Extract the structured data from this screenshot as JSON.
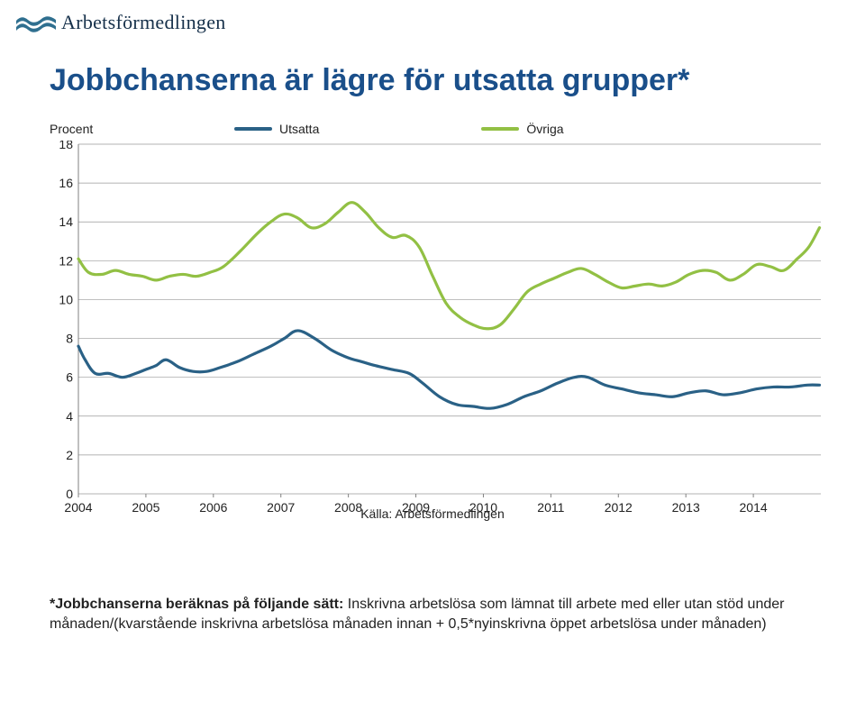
{
  "logo_text": "Arbetsförmedlingen",
  "logo_color": "#2f6f8f",
  "title": "Jobbchanserna är lägre för utsatta grupper*",
  "title_color": "#1a4f8a",
  "y_axis_label": "Procent",
  "legend": {
    "series1": {
      "label": "Utsatta",
      "color": "#2a6186"
    },
    "series2": {
      "label": "Övriga",
      "color": "#92c044"
    }
  },
  "chart": {
    "type": "line",
    "background_color": "#ffffff",
    "grid_color": "#9a9a9a",
    "axis_color": "#808080",
    "tick_font_size": 14,
    "line_width": 3.2,
    "ylim": [
      0,
      18
    ],
    "ytick_step": 2,
    "y_ticks": [
      0,
      2,
      4,
      6,
      8,
      10,
      12,
      14,
      16,
      18
    ],
    "x_min": 2004,
    "x_max": 2015,
    "x_tick_labels": [
      "2004",
      "2005",
      "2006",
      "2007",
      "2008",
      "2009",
      "2010",
      "2011",
      "2012",
      "2013",
      "2014"
    ],
    "source_label": "Källa: Arbetsförmedlingen",
    "series": {
      "utsatta": {
        "color": "#2a6186",
        "points": [
          [
            2004.0,
            7.6
          ],
          [
            2004.1,
            6.9
          ],
          [
            2004.25,
            6.2
          ],
          [
            2004.45,
            6.2
          ],
          [
            2004.65,
            6.0
          ],
          [
            2004.85,
            6.2
          ],
          [
            2005.0,
            6.4
          ],
          [
            2005.15,
            6.6
          ],
          [
            2005.3,
            6.9
          ],
          [
            2005.5,
            6.5
          ],
          [
            2005.7,
            6.3
          ],
          [
            2005.9,
            6.3
          ],
          [
            2006.1,
            6.5
          ],
          [
            2006.35,
            6.8
          ],
          [
            2006.6,
            7.2
          ],
          [
            2006.85,
            7.6
          ],
          [
            2007.05,
            8.0
          ],
          [
            2007.25,
            8.4
          ],
          [
            2007.5,
            8.0
          ],
          [
            2007.75,
            7.4
          ],
          [
            2008.0,
            7.0
          ],
          [
            2008.2,
            6.8
          ],
          [
            2008.4,
            6.6
          ],
          [
            2008.65,
            6.4
          ],
          [
            2008.9,
            6.2
          ],
          [
            2009.1,
            5.7
          ],
          [
            2009.35,
            5.0
          ],
          [
            2009.6,
            4.6
          ],
          [
            2009.85,
            4.5
          ],
          [
            2010.1,
            4.4
          ],
          [
            2010.35,
            4.6
          ],
          [
            2010.6,
            5.0
          ],
          [
            2010.85,
            5.3
          ],
          [
            2011.1,
            5.7
          ],
          [
            2011.35,
            6.0
          ],
          [
            2011.55,
            6.0
          ],
          [
            2011.8,
            5.6
          ],
          [
            2012.05,
            5.4
          ],
          [
            2012.3,
            5.2
          ],
          [
            2012.55,
            5.1
          ],
          [
            2012.8,
            5.0
          ],
          [
            2013.05,
            5.2
          ],
          [
            2013.3,
            5.3
          ],
          [
            2013.55,
            5.1
          ],
          [
            2013.8,
            5.2
          ],
          [
            2014.05,
            5.4
          ],
          [
            2014.3,
            5.5
          ],
          [
            2014.55,
            5.5
          ],
          [
            2014.8,
            5.6
          ],
          [
            2014.98,
            5.6
          ]
        ]
      },
      "ovriga": {
        "color": "#92c044",
        "points": [
          [
            2004.0,
            12.1
          ],
          [
            2004.15,
            11.4
          ],
          [
            2004.35,
            11.3
          ],
          [
            2004.55,
            11.5
          ],
          [
            2004.75,
            11.3
          ],
          [
            2004.95,
            11.2
          ],
          [
            2005.15,
            11.0
          ],
          [
            2005.35,
            11.2
          ],
          [
            2005.55,
            11.3
          ],
          [
            2005.75,
            11.2
          ],
          [
            2005.95,
            11.4
          ],
          [
            2006.15,
            11.7
          ],
          [
            2006.4,
            12.5
          ],
          [
            2006.65,
            13.4
          ],
          [
            2006.85,
            14.0
          ],
          [
            2007.05,
            14.4
          ],
          [
            2007.25,
            14.2
          ],
          [
            2007.45,
            13.7
          ],
          [
            2007.65,
            13.9
          ],
          [
            2007.85,
            14.5
          ],
          [
            2008.05,
            15.0
          ],
          [
            2008.25,
            14.5
          ],
          [
            2008.45,
            13.7
          ],
          [
            2008.65,
            13.2
          ],
          [
            2008.85,
            13.3
          ],
          [
            2009.05,
            12.7
          ],
          [
            2009.25,
            11.2
          ],
          [
            2009.45,
            9.8
          ],
          [
            2009.65,
            9.1
          ],
          [
            2009.85,
            8.7
          ],
          [
            2010.05,
            8.5
          ],
          [
            2010.25,
            8.7
          ],
          [
            2010.45,
            9.5
          ],
          [
            2010.65,
            10.4
          ],
          [
            2010.85,
            10.8
          ],
          [
            2011.05,
            11.1
          ],
          [
            2011.25,
            11.4
          ],
          [
            2011.45,
            11.6
          ],
          [
            2011.65,
            11.3
          ],
          [
            2011.85,
            10.9
          ],
          [
            2012.05,
            10.6
          ],
          [
            2012.25,
            10.7
          ],
          [
            2012.45,
            10.8
          ],
          [
            2012.65,
            10.7
          ],
          [
            2012.85,
            10.9
          ],
          [
            2013.05,
            11.3
          ],
          [
            2013.25,
            11.5
          ],
          [
            2013.45,
            11.4
          ],
          [
            2013.65,
            11.0
          ],
          [
            2013.85,
            11.3
          ],
          [
            2014.05,
            11.8
          ],
          [
            2014.25,
            11.7
          ],
          [
            2014.45,
            11.5
          ],
          [
            2014.65,
            12.1
          ],
          [
            2014.82,
            12.7
          ],
          [
            2014.98,
            13.7
          ]
        ]
      }
    }
  },
  "footnote": {
    "head": "*Jobbchanserna beräknas på följande sätt:",
    "body": " Inskrivna arbetslösa som lämnat till arbete med eller utan stöd under månaden/(kvarstående inskrivna arbetslösa månaden innan + 0,5*nyinskrivna öppet arbetslösa under månaden)"
  }
}
